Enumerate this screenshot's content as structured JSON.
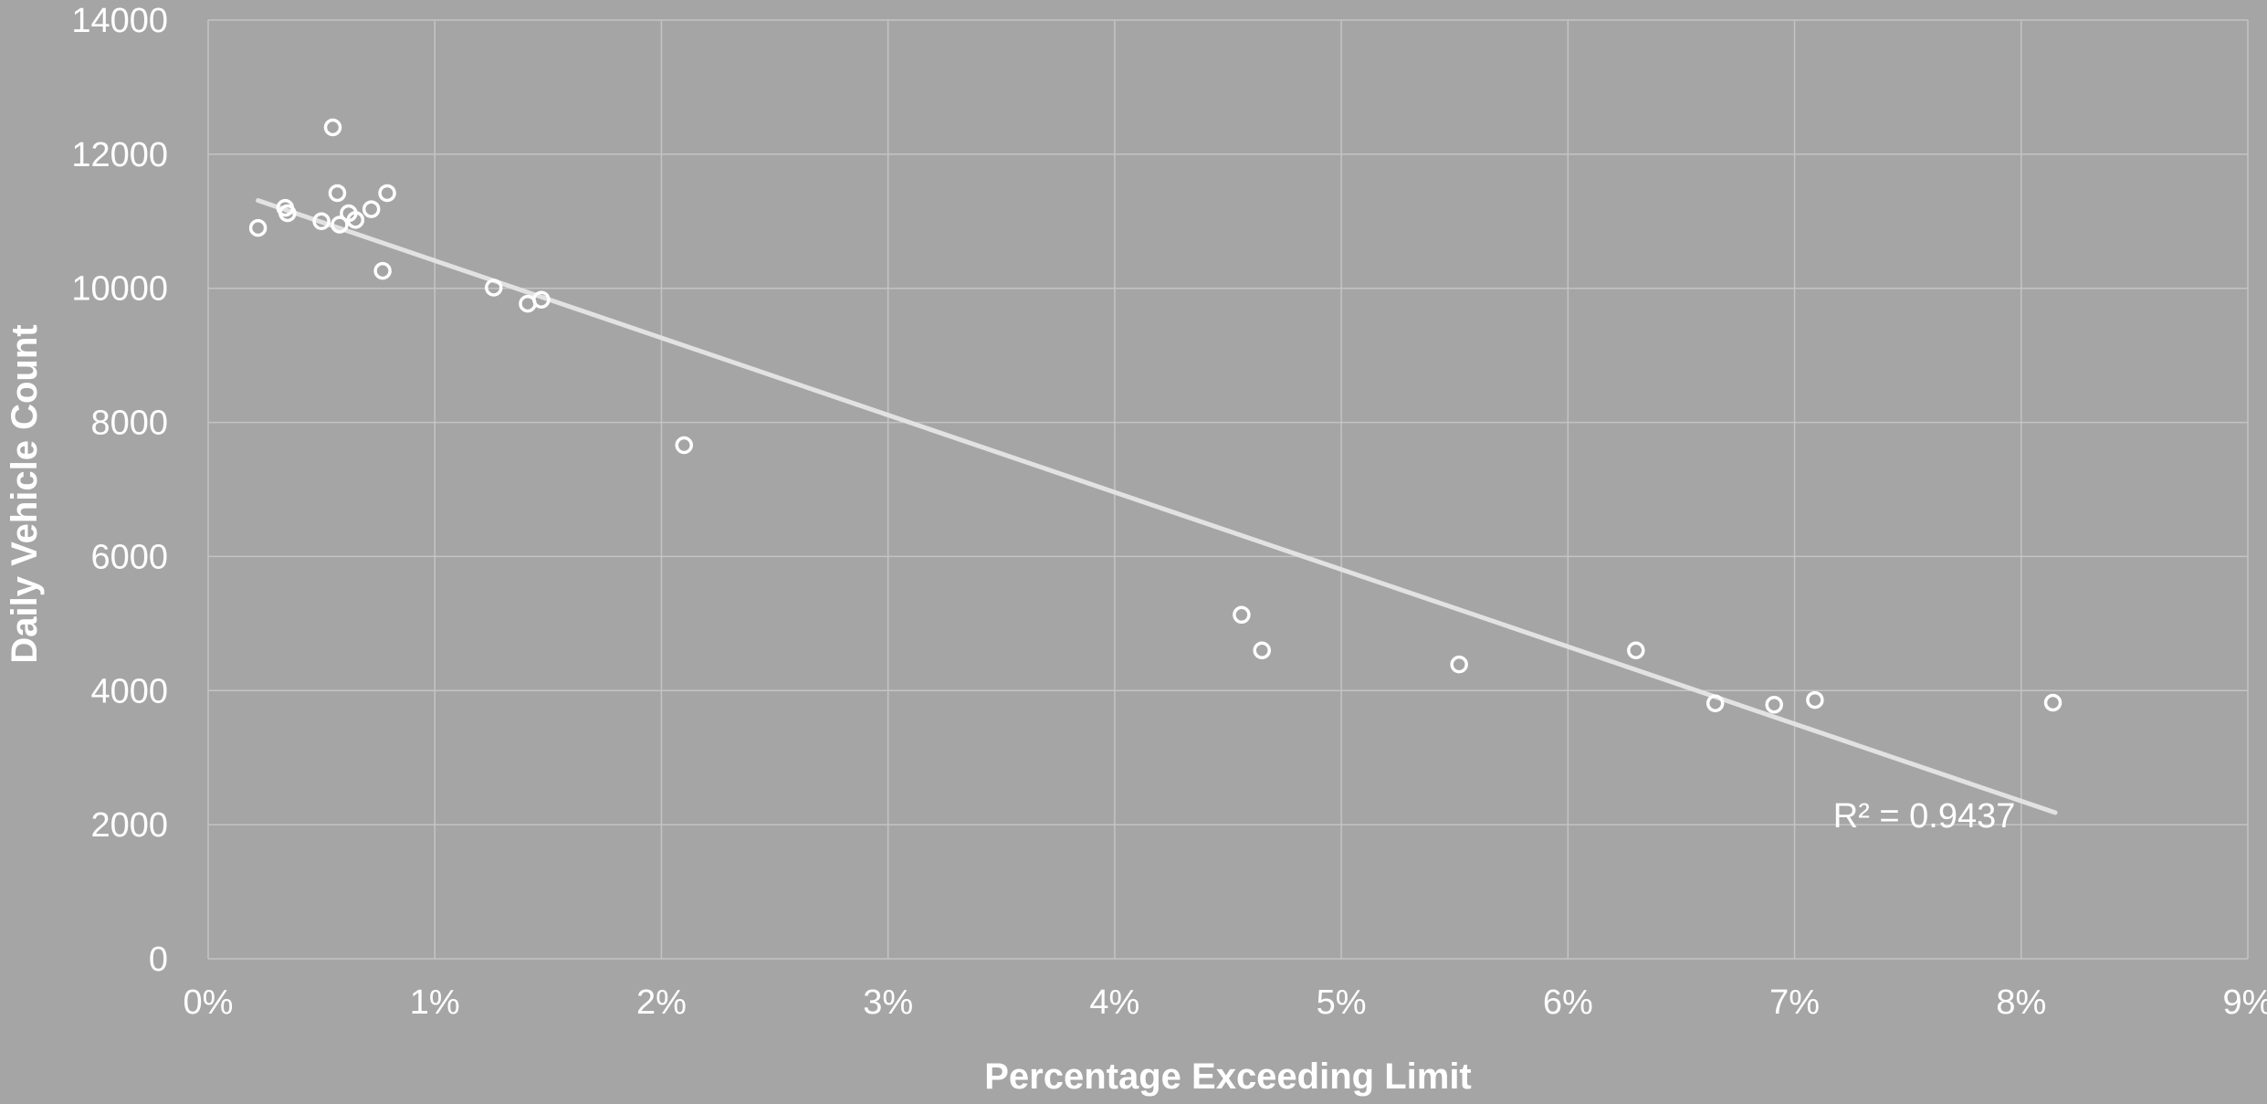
{
  "chart_data": {
    "type": "scatter",
    "title": "",
    "xlabel": "Percentage Exceeding Limit",
    "ylabel": "Daily Vehicle Count",
    "xlim": [
      0,
      0.09
    ],
    "ylim": [
      0,
      14000
    ],
    "x_ticks": [
      0,
      0.01,
      0.02,
      0.03,
      0.04,
      0.05,
      0.06,
      0.07,
      0.08,
      0.09
    ],
    "x_tick_labels": [
      "0%",
      "1%",
      "2%",
      "3%",
      "4%",
      "5%",
      "6%",
      "7%",
      "8%",
      "9%"
    ],
    "y_ticks": [
      0,
      2000,
      4000,
      6000,
      8000,
      10000,
      12000,
      14000
    ],
    "y_tick_labels": [
      "0",
      "2000",
      "4000",
      "6000",
      "8000",
      "10000",
      "12000",
      "14000"
    ],
    "grid": true,
    "legend": "none",
    "colors": {
      "background": "#a5a5a5",
      "grid": "#c4c4c4",
      "marker_stroke": "#ffffff",
      "trendline": "#e2e2e2",
      "text": "#ffffff"
    },
    "series": [
      {
        "points": [
          {
            "x": 0.0022,
            "y": 10900
          },
          {
            "x": 0.0034,
            "y": 11200
          },
          {
            "x": 0.0035,
            "y": 11120
          },
          {
            "x": 0.005,
            "y": 11000
          },
          {
            "x": 0.0055,
            "y": 12400
          },
          {
            "x": 0.0057,
            "y": 11420
          },
          {
            "x": 0.0058,
            "y": 10950
          },
          {
            "x": 0.0062,
            "y": 11120
          },
          {
            "x": 0.0065,
            "y": 11020
          },
          {
            "x": 0.0072,
            "y": 11180
          },
          {
            "x": 0.0077,
            "y": 10260
          },
          {
            "x": 0.0079,
            "y": 11420
          },
          {
            "x": 0.0126,
            "y": 10010
          },
          {
            "x": 0.0141,
            "y": 9770
          },
          {
            "x": 0.0147,
            "y": 9830
          },
          {
            "x": 0.021,
            "y": 7660
          },
          {
            "x": 0.0456,
            "y": 5130
          },
          {
            "x": 0.0465,
            "y": 4600
          },
          {
            "x": 0.0552,
            "y": 4390
          },
          {
            "x": 0.063,
            "y": 4600
          },
          {
            "x": 0.0665,
            "y": 3810
          },
          {
            "x": 0.0691,
            "y": 3790
          },
          {
            "x": 0.0709,
            "y": 3860
          },
          {
            "x": 0.0814,
            "y": 3820
          }
        ]
      }
    ],
    "trendline": {
      "type": "linear",
      "x_start": 0.0022,
      "y_start": 11310,
      "x_end": 0.0815,
      "y_end": 2180
    },
    "annotations": [
      {
        "text": "R² = 0.9437",
        "x": 0.0717,
        "y": 2150
      }
    ]
  }
}
